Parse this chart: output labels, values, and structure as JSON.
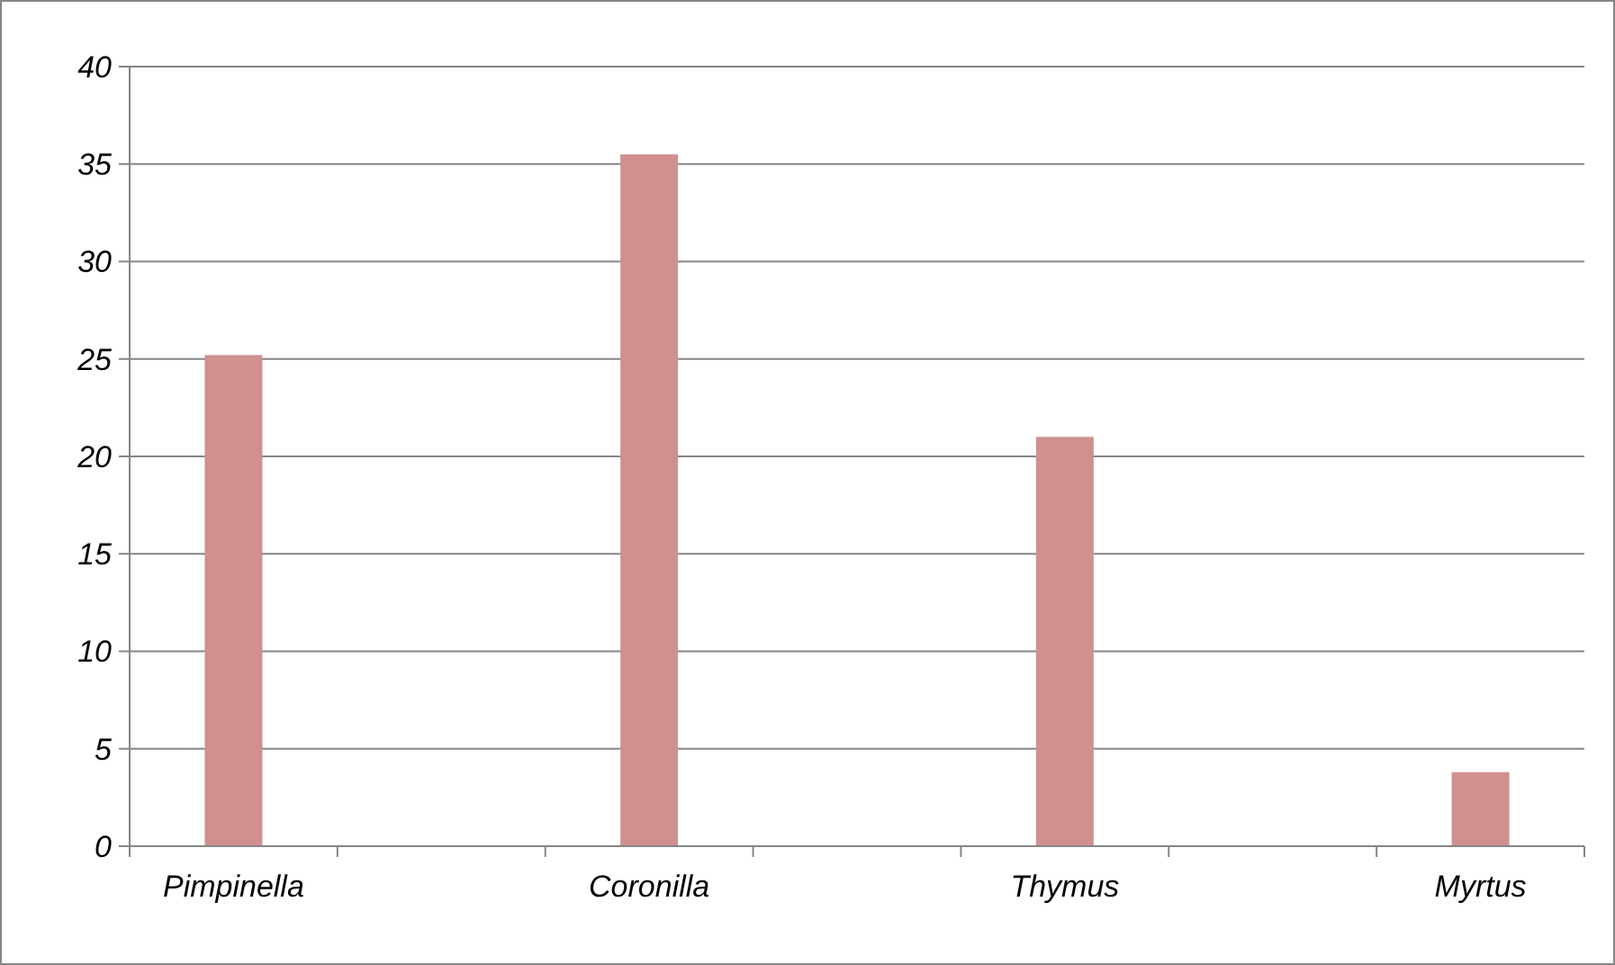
{
  "chart_data": {
    "type": "bar",
    "categories": [
      "Pimpinella",
      null,
      "Coronilla",
      null,
      "Thymus",
      null,
      "Myrtus"
    ],
    "values": [
      25.2,
      null,
      35.5,
      null,
      21.0,
      null,
      3.8
    ],
    "color": "#d09090",
    "ylim": [
      0,
      40
    ],
    "yticks": [
      0,
      5,
      10,
      15,
      20,
      25,
      30,
      35,
      40
    ],
    "grid": "y"
  }
}
